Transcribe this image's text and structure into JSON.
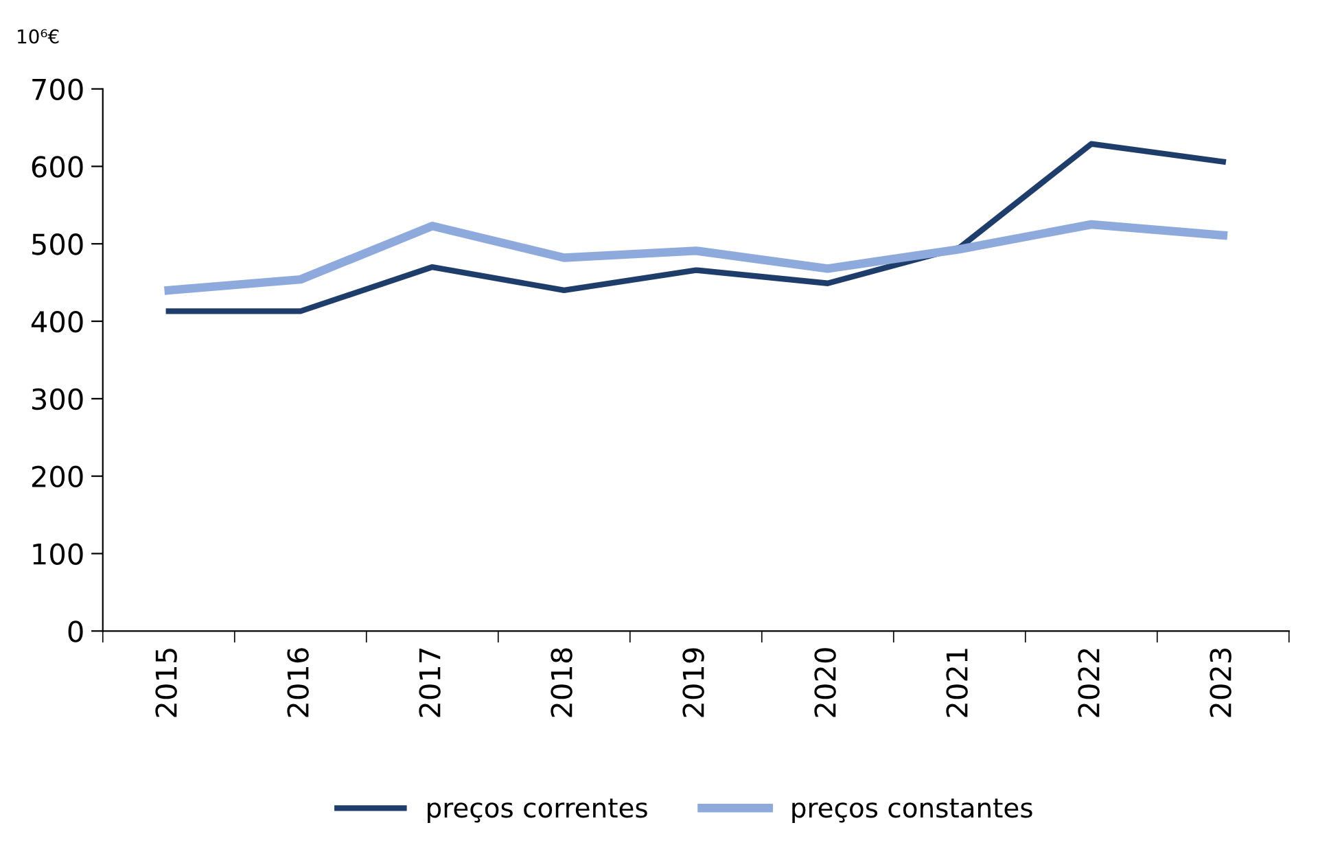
{
  "chart_data": {
    "type": "line",
    "ylabel": "10⁶€",
    "categories": [
      "2015",
      "2016",
      "2017",
      "2018",
      "2019",
      "2020",
      "2021",
      "2022",
      "2023"
    ],
    "series": [
      {
        "name": "preços correntes",
        "color": "#1f3d6b",
        "values": [
          413,
          413,
          470,
          440,
          466,
          449,
          495,
          629,
          606
        ]
      },
      {
        "name": "preços constantes",
        "color": "#8eaadc",
        "values": [
          440,
          454,
          523,
          482,
          491,
          468,
          493,
          525,
          511
        ]
      }
    ],
    "ylim": [
      0,
      700
    ],
    "yticks": [
      0,
      100,
      200,
      300,
      400,
      500,
      600,
      700
    ],
    "grid": false,
    "legend": "bottom",
    "marker": "none",
    "line_style": "solid"
  }
}
